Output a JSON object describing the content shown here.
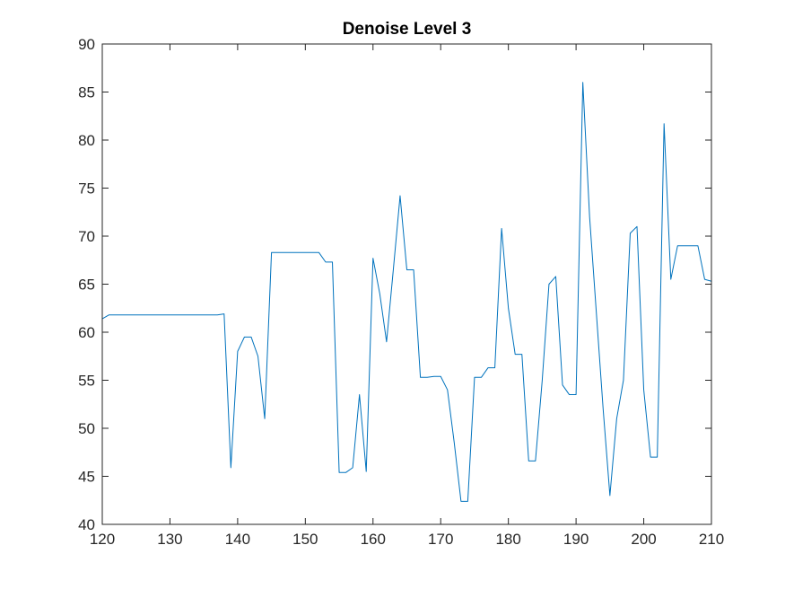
{
  "chart_data": {
    "type": "line",
    "title": "Denoise Level 3",
    "xlabel": "",
    "ylabel": "",
    "xlim": [
      120,
      210
    ],
    "ylim": [
      40,
      90
    ],
    "xticks": [
      120,
      130,
      140,
      150,
      160,
      170,
      180,
      190,
      200,
      210
    ],
    "yticks": [
      40,
      45,
      50,
      55,
      60,
      65,
      70,
      75,
      80,
      85,
      90
    ],
    "grid": false,
    "legend": "none",
    "colors": {
      "line": "#0072BD",
      "axes": "#262626",
      "background": "#ffffff"
    },
    "series": [
      {
        "x": [
          120,
          121,
          122,
          128,
          137,
          138,
          139,
          140,
          141,
          142,
          143,
          144,
          145,
          146,
          152,
          153,
          154,
          155,
          156,
          157,
          158,
          159,
          160,
          161,
          162,
          163,
          164,
          165,
          166,
          167,
          168,
          169,
          170,
          171,
          172,
          173,
          174,
          175,
          176,
          177,
          178,
          179,
          180,
          181,
          182,
          183,
          184,
          185,
          186,
          187,
          188,
          189,
          190,
          191,
          192,
          193,
          194,
          195,
          196,
          197,
          198,
          199,
          200,
          201,
          202,
          203,
          204,
          205,
          206,
          207,
          208,
          209,
          210
        ],
        "y": [
          61.4,
          61.8,
          61.8,
          61.8,
          61.8,
          61.9,
          45.9,
          58.0,
          59.5,
          59.5,
          57.5,
          51.0,
          68.3,
          68.3,
          68.3,
          67.3,
          67.3,
          45.4,
          45.4,
          45.9,
          53.5,
          45.5,
          67.7,
          64.0,
          59.0,
          66.5,
          74.2,
          66.5,
          66.5,
          55.3,
          55.3,
          55.4,
          55.4,
          54.0,
          48.5,
          42.4,
          42.4,
          55.3,
          55.3,
          56.3,
          56.3,
          70.8,
          62.5,
          57.7,
          57.7,
          46.6,
          46.6,
          55.0,
          65.0,
          65.8,
          54.5,
          53.5,
          53.5,
          86.0,
          72.0,
          62.0,
          52.0,
          43.0,
          51.0,
          55.0,
          70.3,
          71.0,
          54.0,
          47.0,
          47.0,
          81.7,
          65.5,
          69.0,
          69.0,
          69.0,
          69.0,
          65.5,
          65.3
        ]
      }
    ]
  }
}
